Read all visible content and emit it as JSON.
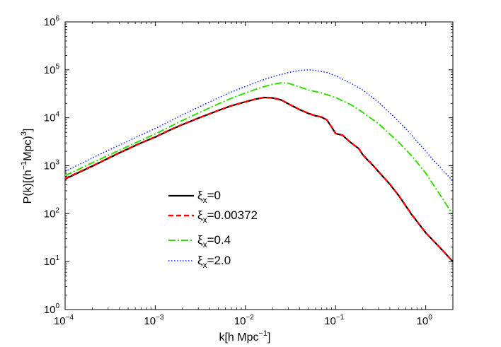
{
  "chart_data": {
    "type": "line",
    "title": "",
    "xscale": "log",
    "yscale": "log",
    "xlim": [
      0.0001,
      2.0
    ],
    "ylim": [
      1,
      1000000
    ],
    "grid": false,
    "legend_position": "center-left",
    "xlabel": {
      "main": "k[h Mpc",
      "sup": "−1",
      "tail": "]"
    },
    "ylabel": {
      "pre": "P(k)[(h",
      "sup1": "−1",
      "mid": "Mpc)",
      "sup2": "3",
      "tail": "]"
    },
    "xticks": [
      {
        "value": 0.0001,
        "base": "10",
        "exp": "−4"
      },
      {
        "value": 0.001,
        "base": "10",
        "exp": "−3"
      },
      {
        "value": 0.01,
        "base": "10",
        "exp": "−2"
      },
      {
        "value": 0.1,
        "base": "10",
        "exp": "−1"
      },
      {
        "value": 1,
        "base": "10",
        "exp": "0"
      }
    ],
    "yticks": [
      {
        "value": 1,
        "base": "10",
        "exp": "0"
      },
      {
        "value": 10,
        "base": "10",
        "exp": "1"
      },
      {
        "value": 100,
        "base": "10",
        "exp": "2"
      },
      {
        "value": 1000,
        "base": "10",
        "exp": "3"
      },
      {
        "value": 10000,
        "base": "10",
        "exp": "4"
      },
      {
        "value": 100000,
        "base": "10",
        "exp": "5"
      },
      {
        "value": 1000000,
        "base": "10",
        "exp": "6"
      }
    ],
    "series": [
      {
        "name": "ξ_x=0",
        "label_main": "ξ",
        "label_sub": "x",
        "label_tail": "=0",
        "color": "#000000",
        "dash": "",
        "stroke_width": 2.2,
        "x": [
          0.0001,
          0.000205,
          0.0004,
          0.0007,
          0.001,
          0.0015,
          0.002,
          0.003,
          0.005,
          0.007,
          0.01,
          0.013,
          0.016,
          0.02,
          0.025,
          0.03,
          0.04,
          0.05,
          0.06,
          0.07,
          0.08,
          0.09,
          0.1,
          0.11,
          0.12,
          0.14,
          0.16,
          0.18,
          0.2,
          0.22,
          0.25,
          0.3,
          0.4,
          0.5,
          0.7,
          1.0,
          1.5,
          2.0
        ],
        "y": [
          530,
          1000,
          1850,
          3000,
          3950,
          5700,
          7200,
          9800,
          14200,
          17800,
          21500,
          24500,
          26500,
          26000,
          23500,
          19500,
          14800,
          12300,
          11000,
          10300,
          9000,
          6500,
          4700,
          4500,
          4300,
          3300,
          2700,
          2300,
          1700,
          1400,
          1100,
          750,
          410,
          240,
          95,
          40,
          18,
          10
        ]
      },
      {
        "name": "ξ_x=0.00372",
        "label_main": "ξ",
        "label_sub": "x",
        "label_tail": "=0.00372",
        "color": "#ff0000",
        "dash": "7,4",
        "stroke_width": 2.4,
        "x": [
          0.0001,
          0.000205,
          0.0004,
          0.0007,
          0.001,
          0.0015,
          0.002,
          0.003,
          0.005,
          0.007,
          0.01,
          0.013,
          0.016,
          0.02,
          0.025,
          0.03,
          0.04,
          0.05,
          0.06,
          0.07,
          0.08,
          0.09,
          0.1,
          0.11,
          0.12,
          0.14,
          0.16,
          0.18,
          0.2,
          0.22,
          0.25,
          0.3,
          0.4,
          0.5,
          0.7,
          1.0,
          1.5,
          2.0
        ],
        "y": [
          540,
          1010,
          1870,
          3020,
          3980,
          5750,
          7250,
          9850,
          14250,
          17850,
          21550,
          24550,
          26550,
          26050,
          23550,
          19550,
          14850,
          12350,
          11050,
          10350,
          9050,
          6550,
          4720,
          4520,
          4320,
          3310,
          2710,
          2310,
          1710,
          1410,
          1105,
          752,
          412,
          241,
          96,
          40,
          18,
          10
        ]
      },
      {
        "name": "ξ_x=0.4",
        "label_main": "ξ",
        "label_sub": "x",
        "label_tail": "=0.4",
        "color": "#33dd00",
        "dash": "10,3,2,3",
        "stroke_width": 2.0,
        "x": [
          0.0001,
          0.0002,
          0.0004,
          0.0007,
          0.001,
          0.002,
          0.003,
          0.005,
          0.007,
          0.01,
          0.015,
          0.02,
          0.025,
          0.03,
          0.04,
          0.05,
          0.07,
          0.1,
          0.15,
          0.2,
          0.3,
          0.5,
          0.7,
          1.0,
          1.5,
          2.0
        ],
        "y": [
          620,
          1150,
          2100,
          3400,
          4600,
          8800,
          12500,
          19500,
          25500,
          33000,
          43000,
          50000,
          53500,
          52500,
          44000,
          38000,
          33000,
          26500,
          18500,
          13000,
          7500,
          3100,
          1600,
          700,
          220,
          95
        ]
      },
      {
        "name": "ξ_x=2.0",
        "label_main": "ξ",
        "label_sub": "x",
        "label_tail": "=2.0",
        "color": "#1a33ff",
        "dash": "1.6,2.4",
        "stroke_width": 1.6,
        "x": [
          0.0001,
          0.0002,
          0.0004,
          0.0007,
          0.001,
          0.002,
          0.003,
          0.005,
          0.007,
          0.01,
          0.015,
          0.02,
          0.03,
          0.04,
          0.05,
          0.06,
          0.08,
          0.1,
          0.15,
          0.2,
          0.3,
          0.5,
          0.7,
          1.0,
          1.5,
          2.0
        ],
        "y": [
          760,
          1450,
          2700,
          4400,
          6000,
          11500,
          16500,
          26000,
          34500,
          45000,
          60000,
          72000,
          88000,
          97000,
          100000,
          97000,
          88000,
          75000,
          52000,
          38000,
          21000,
          8500,
          4300,
          2000,
          850,
          480
        ]
      }
    ]
  }
}
